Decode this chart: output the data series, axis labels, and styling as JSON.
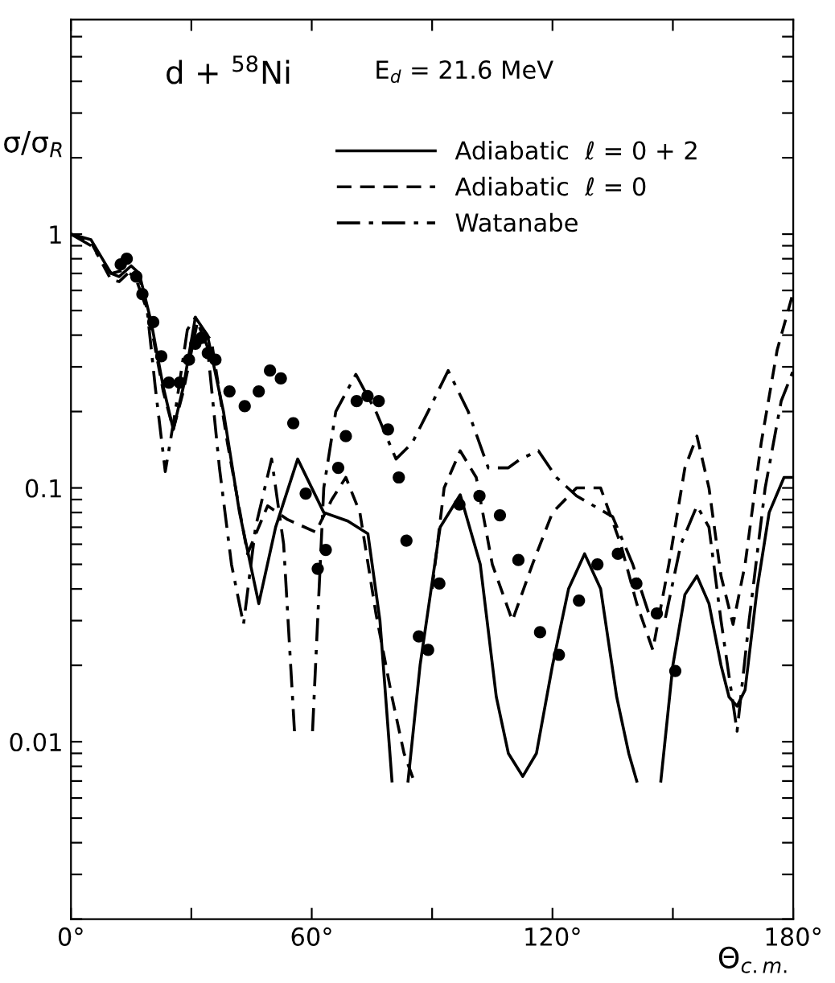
{
  "chart_data": {
    "type": "line",
    "title": "d + $^{58}$Ni",
    "subtitle": "E$_{d}$ = 21.6 MeV",
    "xlabel": "Θ$_{c.m.}$",
    "ylabel": "σ/σ$_{R}$",
    "log": "y",
    "xlim": [
      0,
      180
    ],
    "ylim": [
      0.002,
      7
    ],
    "xticks": [
      {
        "value": 0,
        "label": "0°"
      },
      {
        "value": 30,
        "label": null
      },
      {
        "value": 60,
        "label": "60°"
      },
      {
        "value": 90,
        "label": null
      },
      {
        "value": 120,
        "label": "120°"
      },
      {
        "value": 150,
        "label": null
      },
      {
        "value": 180,
        "label": "180°"
      }
    ],
    "yticks": [
      {
        "value": 0.002,
        "label": null
      },
      {
        "value": 0.003,
        "label": null
      },
      {
        "value": 0.004,
        "label": null
      },
      {
        "value": 0.005,
        "label": null
      },
      {
        "value": 0.006,
        "label": null
      },
      {
        "value": 0.007,
        "label": null
      },
      {
        "value": 0.008,
        "label": null
      },
      {
        "value": 0.009,
        "label": null
      },
      {
        "value": 0.01,
        "label": "0.01"
      },
      {
        "value": 0.02,
        "label": null
      },
      {
        "value": 0.03,
        "label": null
      },
      {
        "value": 0.04,
        "label": null
      },
      {
        "value": 0.05,
        "label": null
      },
      {
        "value": 0.06,
        "label": null
      },
      {
        "value": 0.07,
        "label": null
      },
      {
        "value": 0.08,
        "label": null
      },
      {
        "value": 0.09,
        "label": null
      },
      {
        "value": 0.1,
        "label": "0.1"
      },
      {
        "value": 0.2,
        "label": null
      },
      {
        "value": 0.3,
        "label": null
      },
      {
        "value": 0.4,
        "label": null
      },
      {
        "value": 0.5,
        "label": null
      },
      {
        "value": 0.6,
        "label": null
      },
      {
        "value": 0.7,
        "label": null
      },
      {
        "value": 0.8,
        "label": null
      },
      {
        "value": 0.9,
        "label": null
      },
      {
        "value": 1,
        "label": "1"
      },
      {
        "value": 2,
        "label": null
      },
      {
        "value": 3,
        "label": null
      },
      {
        "value": 4,
        "label": null
      },
      {
        "value": 5,
        "label": null
      },
      {
        "value": 6,
        "label": null
      }
    ],
    "grid": false,
    "legend": "top right",
    "series": [
      {
        "name": "Adiabatic  ℓ = 0 + 2",
        "color": "#000000",
        "line_style": "solid",
        "x": [
          0,
          5,
          10,
          12,
          15,
          17,
          20,
          23,
          25.5,
          28,
          31,
          34,
          38,
          42,
          46.8,
          51,
          56.5,
          63,
          69,
          74,
          77,
          80,
          82,
          84,
          87,
          92,
          97,
          102,
          106,
          109,
          112.6,
          116,
          120,
          124,
          128,
          132,
          136,
          139,
          141,
          144,
          147,
          150,
          153,
          156,
          159,
          162,
          164,
          166,
          168,
          171,
          174,
          177.7,
          180
        ],
        "values": [
          1.0,
          0.95,
          0.7,
          0.68,
          0.75,
          0.7,
          0.45,
          0.25,
          0.17,
          0.25,
          0.47,
          0.4,
          0.2,
          0.08,
          0.035,
          0.07,
          0.13,
          0.08,
          0.074,
          0.066,
          0.03,
          0.007,
          null,
          0.007,
          0.02,
          0.07,
          0.094,
          0.05,
          0.015,
          0.009,
          0.0073,
          0.009,
          0.02,
          0.04,
          0.055,
          0.04,
          0.015,
          0.009,
          0.007,
          null,
          0.007,
          0.02,
          0.038,
          0.045,
          0.035,
          0.02,
          0.015,
          0.0138,
          0.016,
          0.04,
          0.08,
          0.11,
          0.11
        ]
      },
      {
        "name": "Adiabatic  ℓ = 0",
        "color": "#000000",
        "line_style": "dashed",
        "x": [
          0,
          5,
          10,
          12,
          15,
          17,
          20,
          23,
          25.5,
          28,
          31.5,
          35,
          39,
          44,
          49,
          54,
          61,
          65,
          68.5,
          72,
          76,
          80,
          83,
          85.5,
          87,
          90,
          93,
          97,
          101,
          105,
          110,
          115,
          120,
          126,
          132,
          137,
          141,
          145,
          149,
          153,
          156,
          159,
          162,
          165,
          168,
          172,
          176,
          180
        ],
        "values": [
          1.0,
          0.93,
          0.66,
          0.65,
          0.72,
          0.68,
          0.43,
          0.24,
          0.17,
          0.24,
          0.45,
          0.38,
          0.15,
          0.055,
          0.085,
          0.075,
          0.067,
          0.09,
          0.11,
          0.08,
          0.032,
          0.015,
          0.009,
          0.007,
          null,
          0.04,
          0.1,
          0.14,
          0.11,
          0.05,
          0.03,
          0.05,
          0.08,
          0.1,
          0.1,
          0.06,
          0.035,
          0.023,
          0.05,
          0.12,
          0.16,
          0.1,
          0.045,
          0.029,
          0.05,
          0.15,
          0.35,
          0.59
        ]
      },
      {
        "name": "Watanabe",
        "color": "#000000",
        "line_style": "dashdot",
        "x": [
          0,
          5,
          10,
          13,
          16,
          19,
          21,
          23.5,
          26,
          29,
          31,
          34,
          37,
          40,
          43,
          46,
          50,
          53,
          55.7,
          58,
          60.2,
          63,
          66,
          71,
          76,
          81,
          85,
          89,
          94,
          99,
          104,
          109,
          112,
          116.5,
          121,
          126,
          135,
          140,
          144,
          148,
          152,
          156,
          159,
          162,
          166,
          169,
          173,
          177,
          180
        ],
        "values": [
          1.0,
          0.9,
          0.7,
          0.72,
          0.68,
          0.5,
          0.25,
          0.116,
          0.2,
          0.42,
          0.47,
          0.36,
          0.12,
          0.05,
          0.029,
          0.07,
          0.13,
          0.06,
          0.011,
          null,
          0.011,
          0.1,
          0.2,
          0.28,
          0.2,
          0.13,
          0.15,
          0.2,
          0.29,
          0.2,
          0.12,
          0.12,
          0.13,
          0.14,
          0.11,
          0.093,
          0.077,
          0.05,
          0.032,
          0.03,
          0.06,
          0.085,
          0.07,
          0.03,
          0.011,
          0.03,
          0.1,
          0.22,
          0.29
        ]
      },
      {
        "type": "scatter",
        "color": "#000000",
        "marker": "circle",
        "x": [
          12.4,
          13.9,
          16.3,
          17.8,
          20.5,
          22.5,
          24.4,
          27.1,
          29.4,
          31.0,
          32.5,
          34.1,
          36.0,
          39.5,
          43.3,
          46.8,
          49.6,
          52.3,
          55.4,
          58.5,
          61.5,
          63.5,
          66.6,
          68.5,
          71.2,
          73.9,
          76.7,
          79.0,
          81.7,
          83.6,
          86.7,
          89.0,
          91.8,
          96.8,
          101.8,
          106.9,
          111.5,
          116.9,
          121.6,
          126.6,
          131.2,
          136.3,
          140.9,
          146.0,
          150.6
        ],
        "values": [
          0.76,
          0.8,
          0.68,
          0.58,
          0.45,
          0.33,
          0.26,
          0.26,
          0.32,
          0.37,
          0.39,
          0.34,
          0.32,
          0.24,
          0.21,
          0.24,
          0.29,
          0.27,
          0.18,
          0.095,
          0.048,
          0.057,
          0.12,
          0.16,
          0.22,
          0.23,
          0.22,
          0.17,
          0.11,
          0.062,
          0.026,
          0.023,
          0.042,
          0.086,
          0.093,
          0.078,
          0.052,
          0.027,
          0.022,
          0.036,
          0.05,
          0.055,
          0.042,
          0.032,
          0.019
        ]
      }
    ]
  }
}
